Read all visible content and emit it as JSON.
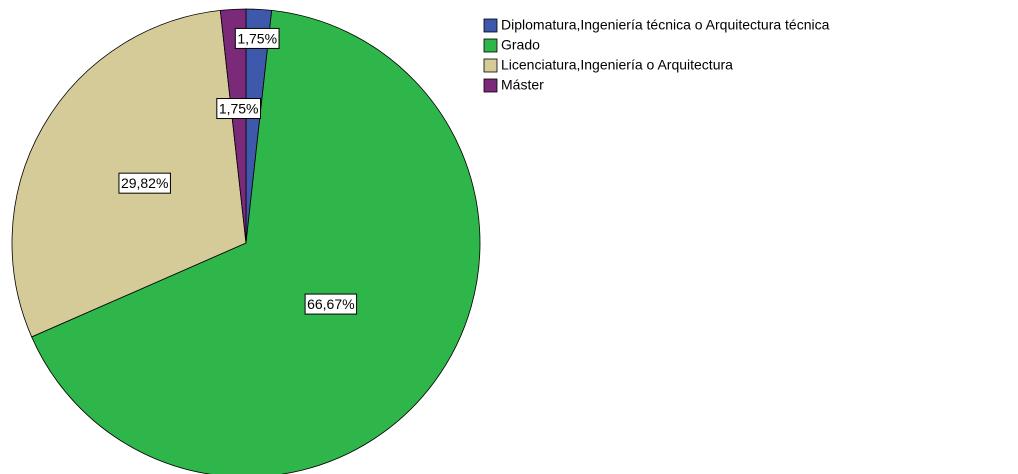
{
  "chart_data": {
    "type": "pie",
    "categories": [
      "Diplomatura,Ingeniería técnica o Arquitectura técnica",
      "Grado",
      "Licenciatura,Ingeniería o Arquitectura",
      "Máster"
    ],
    "values": [
      1.75,
      66.67,
      29.82,
      1.75
    ],
    "value_labels": [
      "1,75%",
      "66,67%",
      "29,82%",
      "1,75%"
    ],
    "colors": [
      "#3e58ac",
      "#2fb64b",
      "#d4cb98",
      "#7b2a7a"
    ],
    "legend": "right"
  }
}
